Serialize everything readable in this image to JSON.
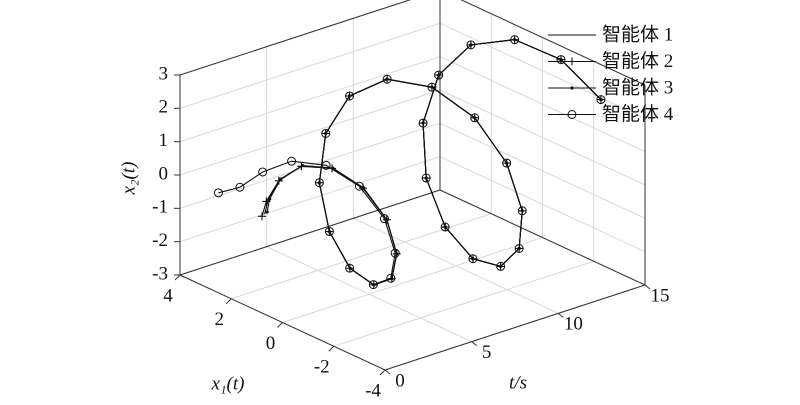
{
  "chart_data": {
    "type": "line3d",
    "x_label": "t/s",
    "y_label": "x₁(t)",
    "z_label": "x₂(t)",
    "xlim": [
      0,
      15
    ],
    "xticks": [
      0,
      5,
      10,
      15
    ],
    "ylim": [
      -4,
      4
    ],
    "yticks": [
      -4,
      -2,
      0,
      2,
      4
    ],
    "zlim": [
      -3,
      3
    ],
    "zticks": [
      -3,
      -2,
      -1,
      0,
      1,
      2,
      3
    ],
    "grid": true,
    "legend": "upper right",
    "t": [
      0,
      0.5,
      1,
      1.5,
      2,
      2.5,
      3,
      3.5,
      4,
      4.5,
      5,
      5.5,
      6,
      6.5,
      7,
      7.5,
      8,
      8.5,
      9,
      9.5,
      10,
      10.5,
      11,
      11.5,
      12,
      12.5,
      13,
      13.5,
      14,
      14.5,
      15
    ],
    "series": [
      {
        "name": "智能体 1",
        "color": "#111111",
        "marker": "none",
        "x1": [
          0.7,
          0.9,
          0.79,
          0.26,
          -0.6,
          -1.46,
          -2.04,
          -2.09,
          -1.56,
          -0.52,
          0.74,
          1.89,
          2.62,
          2.71,
          2.12,
          0.99,
          -0.42,
          -1.75,
          -2.66,
          -2.93,
          -2.47,
          -1.41,
          0.01,
          1.43,
          2.51,
          2.97,
          2.7,
          1.78,
          0.41,
          -1.06,
          -2.28
        ],
        "x2": [
          0,
          0.26,
          0.83,
          1.35,
          1.5,
          1.13,
          0.3,
          -0.79,
          -1.81,
          -2.45,
          -2.49,
          -1.88,
          -0.76,
          0.6,
          1.85,
          2.67,
          2.85,
          2.32,
          1.2,
          -0.22,
          -1.6,
          -2.6,
          -2.96,
          -2.6,
          -1.6,
          -0.2,
          1.25,
          2.4,
          2.96,
          2.8,
          1.95
        ]
      },
      {
        "name": "智能体 2",
        "color": "#111111",
        "marker": "plus",
        "x1": [
          0.8,
          0.97,
          0.82,
          0.28,
          -0.58,
          -1.45,
          -2.04,
          -2.09,
          -1.56,
          -0.52,
          0.75,
          1.89,
          2.62,
          2.71,
          2.12,
          0.99,
          -0.42,
          -1.75,
          -2.66,
          -2.93,
          -2.47,
          -1.41,
          0.01,
          1.43,
          2.51,
          2.97,
          2.7,
          1.78,
          0.41,
          -1.06,
          -2.28
        ],
        "x2": [
          -0.1,
          0.2,
          0.79,
          1.33,
          1.49,
          1.12,
          0.3,
          -0.79,
          -1.81,
          -2.45,
          -2.49,
          -1.88,
          -0.76,
          0.6,
          1.85,
          2.67,
          2.85,
          2.32,
          1.2,
          -0.22,
          -1.6,
          -2.6,
          -2.96,
          -2.6,
          -1.6,
          -0.2,
          1.25,
          2.4,
          2.96,
          2.8,
          1.95
        ]
      },
      {
        "name": "智能体 3",
        "color": "#111111",
        "marker": "dot",
        "x1": [
          0.6,
          0.84,
          0.75,
          0.23,
          -0.61,
          -1.47,
          -2.05,
          -2.09,
          -1.56,
          -0.52,
          0.74,
          1.89,
          2.62,
          2.71,
          2.12,
          0.99,
          -0.42,
          -1.75,
          -2.66,
          -2.93,
          -2.47,
          -1.41,
          0.01,
          1.43,
          2.51,
          2.97,
          2.7,
          1.78,
          0.41,
          -1.06,
          -2.28
        ],
        "x2": [
          0.1,
          0.32,
          0.87,
          1.37,
          1.51,
          1.14,
          0.3,
          -0.79,
          -1.81,
          -2.45,
          -2.49,
          -1.88,
          -0.76,
          0.6,
          1.85,
          2.67,
          2.85,
          2.32,
          1.2,
          -0.22,
          -1.6,
          -2.6,
          -2.96,
          -2.6,
          -1.6,
          -0.2,
          1.25,
          2.4,
          2.96,
          2.8,
          1.95
        ]
      },
      {
        "name": "智能体 4",
        "color": "#111111",
        "marker": "circle",
        "x1": [
          2.5,
          2.0,
          1.45,
          0.66,
          -0.35,
          -1.31,
          -1.95,
          -2.03,
          -1.52,
          -0.5,
          0.76,
          1.89,
          2.62,
          2.71,
          2.12,
          0.99,
          -0.42,
          -1.75,
          -2.66,
          -2.93,
          -2.47,
          -1.41,
          0.01,
          1.43,
          2.51,
          2.97,
          2.7,
          1.78,
          0.41,
          -1.06,
          -2.28
        ],
        "x2": [
          0,
          0.26,
          0.83,
          1.35,
          1.5,
          1.13,
          0.3,
          -0.79,
          -1.81,
          -2.45,
          -2.49,
          -1.88,
          -0.76,
          0.6,
          1.85,
          2.67,
          2.85,
          2.32,
          1.2,
          -0.22,
          -1.6,
          -2.6,
          -2.96,
          -2.6,
          -1.6,
          -0.2,
          1.25,
          2.4,
          2.96,
          2.8,
          1.95
        ]
      }
    ]
  }
}
